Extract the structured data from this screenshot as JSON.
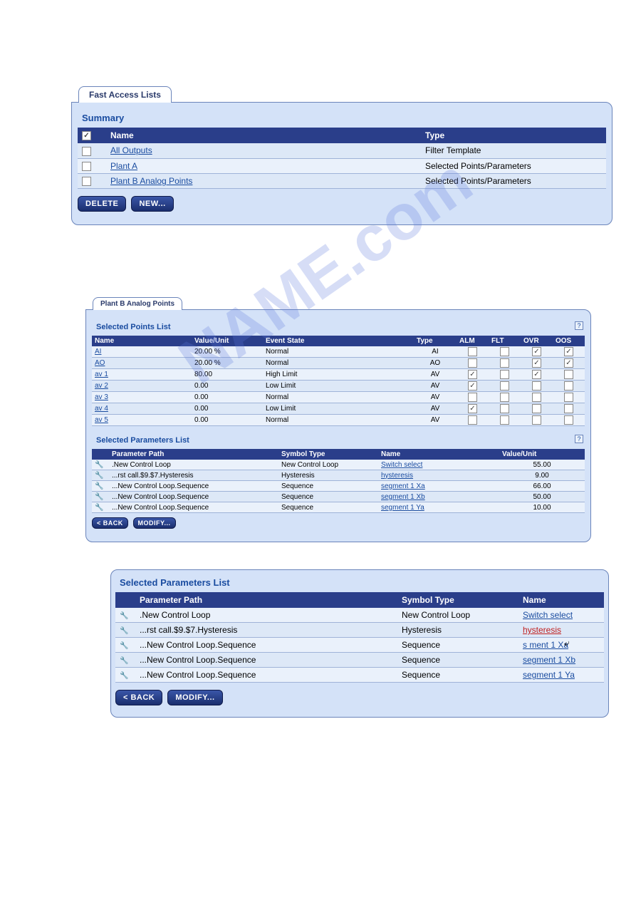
{
  "watermark_text": "NAME.com",
  "panel1": {
    "tab_label": "Fast Access Lists",
    "section_title": "Summary",
    "header_checkbox_state": true,
    "columns": {
      "name": "Name",
      "type": "Type"
    },
    "rows": [
      {
        "checked": false,
        "name": "All Outputs",
        "type": "Filter Template"
      },
      {
        "checked": false,
        "name": "Plant A",
        "type": "Selected Points/Parameters"
      },
      {
        "checked": false,
        "name": "Plant B Analog Points",
        "type": "Selected Points/Parameters"
      }
    ],
    "buttons": {
      "delete": "DELETE",
      "new": "NEW..."
    }
  },
  "panel2": {
    "tab_label": "Plant B Analog Points",
    "points_section_title": "Selected Points List",
    "points_columns": {
      "name": "Name",
      "value": "Value/Unit",
      "state": "Event State",
      "type": "Type",
      "alm": "ALM",
      "flt": "FLT",
      "ovr": "OVR",
      "oos": "OOS"
    },
    "points_rows": [
      {
        "name": "AI",
        "value": "20.00 %",
        "state": "Normal",
        "type": "AI",
        "alm": false,
        "flt": false,
        "ovr": true,
        "oos": true
      },
      {
        "name": "AO",
        "value": "20.00 %",
        "state": "Normal",
        "type": "AO",
        "alm": false,
        "flt": false,
        "ovr": true,
        "oos": true
      },
      {
        "name": "av 1",
        "value": "80.00",
        "state": "High Limit",
        "type": "AV",
        "alm": true,
        "flt": false,
        "ovr": true,
        "oos": false
      },
      {
        "name": "av 2",
        "value": "0.00",
        "state": "Low Limit",
        "type": "AV",
        "alm": true,
        "flt": false,
        "ovr": false,
        "oos": false
      },
      {
        "name": "av 3",
        "value": "0.00",
        "state": "Normal",
        "type": "AV",
        "alm": false,
        "flt": false,
        "ovr": false,
        "oos": false
      },
      {
        "name": "av 4",
        "value": "0.00",
        "state": "Low Limit",
        "type": "AV",
        "alm": true,
        "flt": false,
        "ovr": false,
        "oos": false
      },
      {
        "name": "av 5",
        "value": "0.00",
        "state": "Normal",
        "type": "AV",
        "alm": false,
        "flt": false,
        "ovr": false,
        "oos": false
      }
    ],
    "params_section_title": "Selected Parameters List",
    "params_columns": {
      "path": "Parameter Path",
      "symbol": "Symbol Type",
      "name": "Name",
      "value": "Value/Unit"
    },
    "params_rows": [
      {
        "path": ".New Control Loop",
        "symbol": "New Control Loop",
        "name": "Switch select",
        "value": "55.00"
      },
      {
        "path": "...rst call.$9.$7.Hysteresis",
        "symbol": "Hysteresis",
        "name": "hysteresis",
        "value": "9.00"
      },
      {
        "path": "...New Control Loop.Sequence",
        "symbol": "Sequence",
        "name": "segment 1 Xa",
        "value": "66.00"
      },
      {
        "path": "...New Control Loop.Sequence",
        "symbol": "Sequence",
        "name": "segment 1 Xb",
        "value": "50.00"
      },
      {
        "path": "...New Control Loop.Sequence",
        "symbol": "Sequence",
        "name": "segment 1 Ya",
        "value": "10.00"
      }
    ],
    "buttons": {
      "back": "< BACK",
      "modify": "MODIFY..."
    }
  },
  "panel3": {
    "section_title": "Selected Parameters List",
    "columns": {
      "path": "Parameter Path",
      "symbol": "Symbol Type",
      "name": "Name"
    },
    "rows": [
      {
        "path": ".New Control Loop",
        "symbol": "New Control Loop",
        "name": "Switch select",
        "highlight": false
      },
      {
        "path": "...rst call.$9.$7.Hysteresis",
        "symbol": "Hysteresis",
        "name": "hysteresis",
        "highlight": true
      },
      {
        "path": "...New Control Loop.Sequence",
        "symbol": "Sequence",
        "name": "segment 1 Xa",
        "highlight": false,
        "cursor": true
      },
      {
        "path": "...New Control Loop.Sequence",
        "symbol": "Sequence",
        "name": "segment 1 Xb",
        "highlight": false
      },
      {
        "path": "...New Control Loop.Sequence",
        "symbol": "Sequence",
        "name": "segment 1 Ya",
        "highlight": false
      }
    ],
    "buttons": {
      "back": "< BACK",
      "modify": "MODIFY..."
    }
  }
}
